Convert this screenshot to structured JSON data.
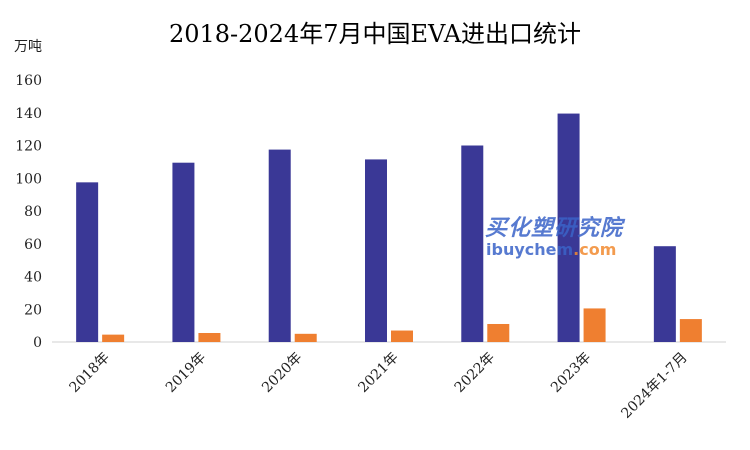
{
  "chart_data": {
    "type": "bar",
    "title": "2018-2024年7月中国EVA进出口统计",
    "ylabel": "万吨",
    "xlabel": "",
    "categories": [
      "2018年",
      "2019年",
      "2020年",
      "2021年",
      "2022年",
      "2023年",
      "2024年1-7月"
    ],
    "series": [
      {
        "values": [
          97.5,
          109.5,
          117.5,
          111.5,
          120,
          139.5,
          58.5
        ],
        "color": "#3a3896"
      },
      {
        "values": [
          4.5,
          5.5,
          5,
          7,
          11,
          20.5,
          14
        ],
        "color": "#ef7f30"
      }
    ],
    "ylim": [
      0,
      160
    ],
    "yticks": [
      0,
      20,
      40,
      60,
      80,
      100,
      120,
      140,
      160
    ],
    "grid": false,
    "legend": "none"
  },
  "watermark": {
    "line1": "买化塑研究院",
    "line2_main": "ibuychem",
    "line2_suffix": ".com"
  }
}
